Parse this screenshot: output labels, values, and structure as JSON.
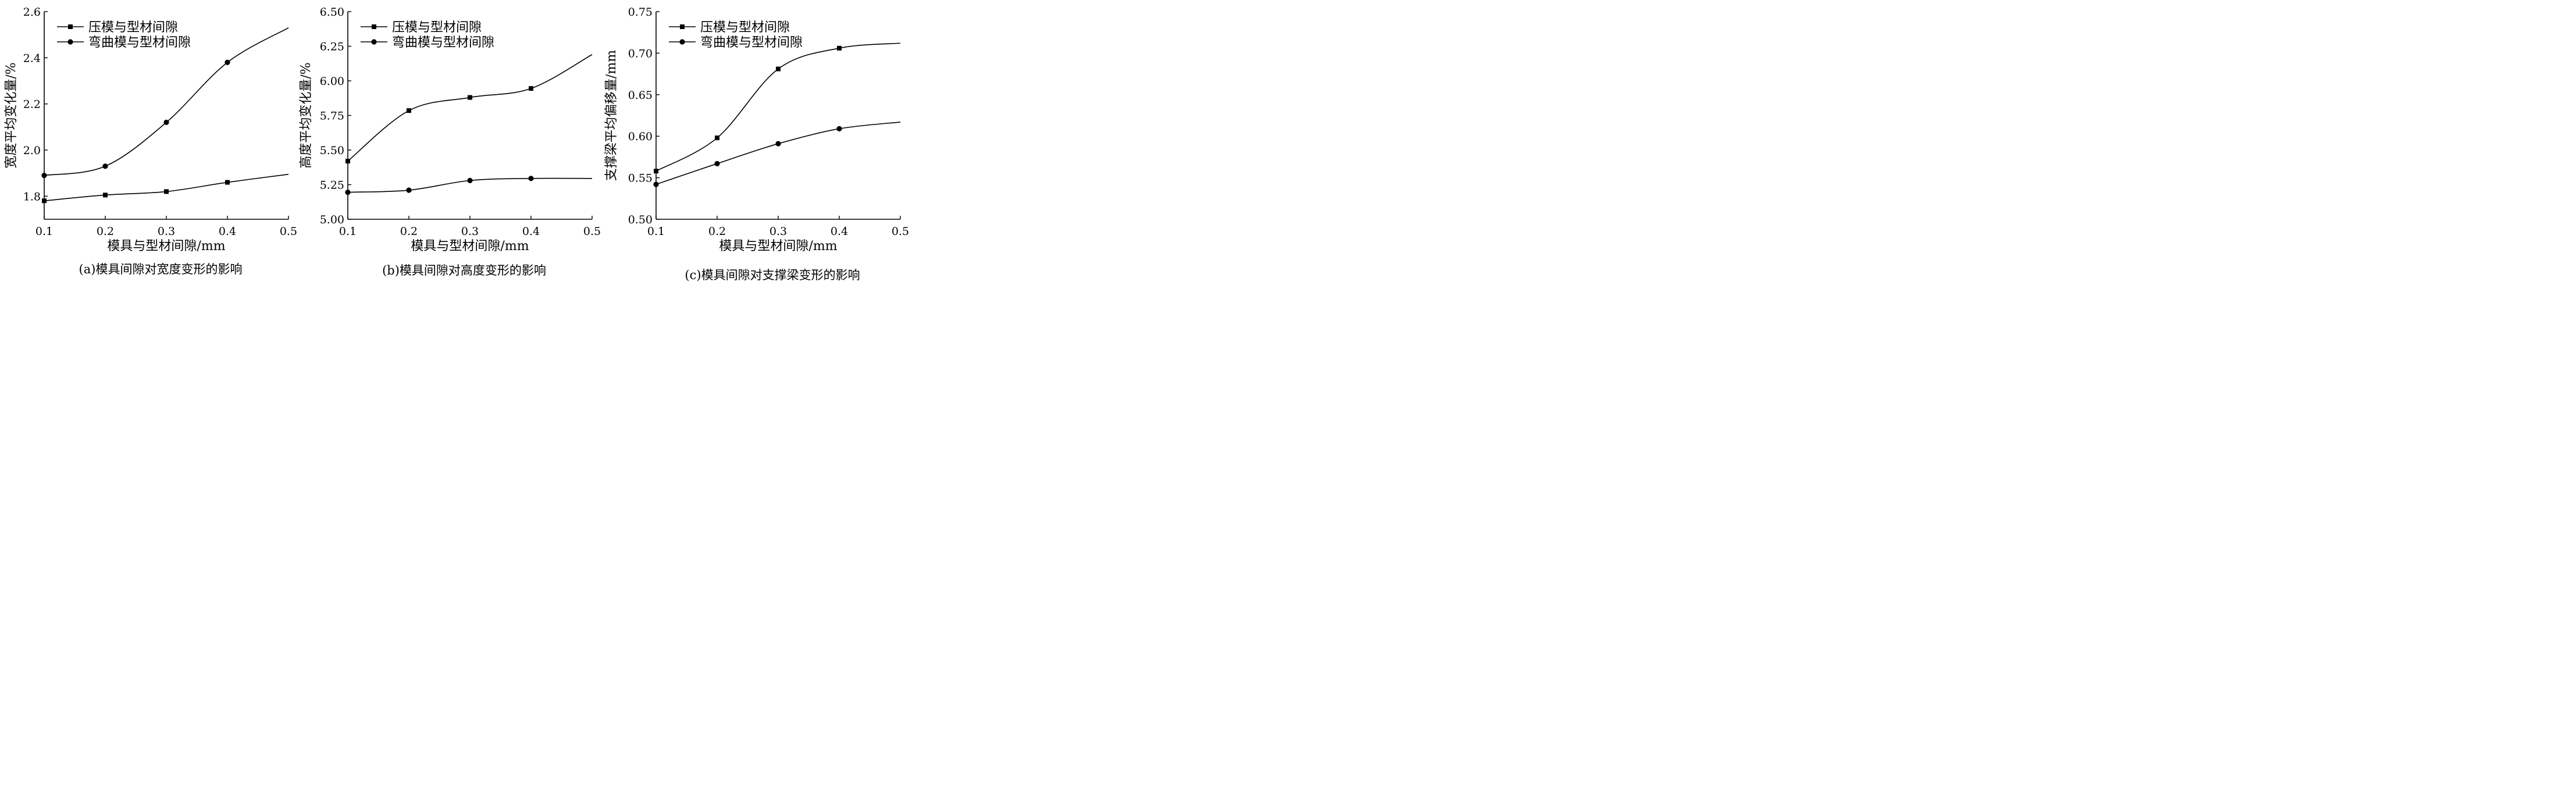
{
  "chart_data": [
    {
      "type": "line",
      "caption": "(a)模具间隙对宽度变形的影响",
      "xlabel": "模具与型材间隙/mm",
      "ylabel": "宽度平均变化量/%",
      "xlim": [
        0.1,
        0.5
      ],
      "ylim": [
        1.7,
        2.6
      ],
      "xticks": [
        0.1,
        0.2,
        0.3,
        0.4,
        0.5
      ],
      "yticks": [
        1.8,
        2.0,
        2.2,
        2.4,
        2.6
      ],
      "xtick_labels": [
        "0.1",
        "0.2",
        "0.3",
        "0.4",
        "0.5"
      ],
      "ytick_labels": [
        "1.8",
        "2.0",
        "2.2",
        "2.4",
        "2.6"
      ],
      "grid": false,
      "legend_position": "top-left",
      "series": [
        {
          "name": "压模与型材间隙",
          "marker": "square",
          "x": [
            0.1,
            0.2,
            0.3,
            0.4
          ],
          "y": [
            1.78,
            1.805,
            1.82,
            1.86
          ],
          "curve_x": [
            0.1,
            0.2,
            0.3,
            0.4,
            0.5
          ],
          "curve_y": [
            1.78,
            1.805,
            1.82,
            1.86,
            1.895
          ]
        },
        {
          "name": "弯曲模与型材间隙",
          "marker": "circle",
          "x": [
            0.1,
            0.2,
            0.3,
            0.4
          ],
          "y": [
            1.89,
            1.93,
            2.12,
            2.38
          ],
          "curve_x": [
            0.1,
            0.2,
            0.3,
            0.4,
            0.5
          ],
          "curve_y": [
            1.89,
            1.93,
            2.12,
            2.38,
            2.53
          ]
        }
      ]
    },
    {
      "type": "line",
      "caption": "(b)模具间隙对高度变形的影响",
      "xlabel": "模具与型材间隙/mm",
      "ylabel": "高度平均变化量/%",
      "xlim": [
        0.1,
        0.5
      ],
      "ylim": [
        5.0,
        6.5
      ],
      "xticks": [
        0.1,
        0.2,
        0.3,
        0.4,
        0.5
      ],
      "yticks": [
        5.0,
        5.25,
        5.5,
        5.75,
        6.0,
        6.25,
        6.5
      ],
      "xtick_labels": [
        "0.1",
        "0.2",
        "0.3",
        "0.4",
        "0.5"
      ],
      "ytick_labels": [
        "5.00",
        "5.25",
        "5.50",
        "5.75",
        "6.00",
        "6.25",
        "6.50"
      ],
      "grid": false,
      "legend_position": "top-left",
      "series": [
        {
          "name": "压模与型材间隙",
          "marker": "square",
          "x": [
            0.1,
            0.2,
            0.3,
            0.4
          ],
          "y": [
            5.42,
            5.785,
            5.88,
            5.945
          ],
          "curve_x": [
            0.1,
            0.2,
            0.3,
            0.4,
            0.5
          ],
          "curve_y": [
            5.42,
            5.785,
            5.88,
            5.945,
            6.19
          ]
        },
        {
          "name": "弯曲模与型材间隙",
          "marker": "circle",
          "x": [
            0.1,
            0.2,
            0.3,
            0.4
          ],
          "y": [
            5.195,
            5.21,
            5.28,
            5.295
          ],
          "curve_x": [
            0.1,
            0.2,
            0.3,
            0.4,
            0.5
          ],
          "curve_y": [
            5.195,
            5.21,
            5.28,
            5.295,
            5.295
          ]
        }
      ]
    },
    {
      "type": "line",
      "caption": "(c)模具间隙对支撑梁变形的影响",
      "xlabel": "模具与型材间隙/mm",
      "ylabel": "支撑梁平均偏移量/mm",
      "xlim": [
        0.1,
        0.5
      ],
      "ylim": [
        0.5,
        0.75
      ],
      "xticks": [
        0.1,
        0.2,
        0.3,
        0.4,
        0.5
      ],
      "yticks": [
        0.5,
        0.55,
        0.6,
        0.65,
        0.7,
        0.75
      ],
      "xtick_labels": [
        "0.1",
        "0.2",
        "0.3",
        "0.4",
        "0.5"
      ],
      "ytick_labels": [
        "0.50",
        "0.55",
        "0.60",
        "0.65",
        "0.70",
        "0.75"
      ],
      "grid": false,
      "legend_position": "top-left",
      "series": [
        {
          "name": "压模与型材间隙",
          "marker": "square",
          "x": [
            0.1,
            0.2,
            0.3,
            0.4
          ],
          "y": [
            0.558,
            0.598,
            0.681,
            0.706
          ],
          "curve_x": [
            0.1,
            0.2,
            0.3,
            0.4,
            0.5
          ],
          "curve_y": [
            0.558,
            0.598,
            0.681,
            0.706,
            0.712
          ]
        },
        {
          "name": "弯曲模与型材间隙",
          "marker": "circle",
          "x": [
            0.1,
            0.2,
            0.3,
            0.4
          ],
          "y": [
            0.542,
            0.567,
            0.591,
            0.609
          ],
          "curve_x": [
            0.1,
            0.2,
            0.3,
            0.4,
            0.5
          ],
          "curve_y": [
            0.542,
            0.567,
            0.591,
            0.609,
            0.617
          ]
        }
      ]
    }
  ]
}
